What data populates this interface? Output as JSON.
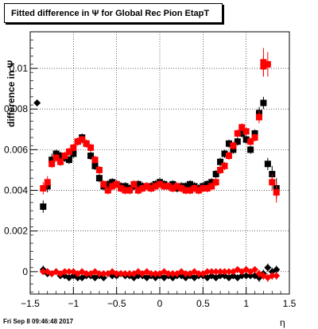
{
  "chart_data": {
    "type": "scatter",
    "title": "Fitted difference in  Ψ  for Global Rec Pion EtapT",
    "xlabel": "η",
    "ylabel": "difference in  Ψ",
    "xlim": [
      -1.5,
      1.5
    ],
    "ylim": [
      -0.0011,
      0.0118
    ],
    "x_ticks": [
      -1.5,
      -1,
      -0.5,
      0,
      0.5,
      1,
      1.5
    ],
    "x_tick_labels": [
      "−1.5",
      "−1",
      "−0.5",
      "0",
      "0.5",
      "1",
      "1.5"
    ],
    "y_ticks": [
      0,
      0.002,
      0.004,
      0.006,
      0.008,
      0.01
    ],
    "y_tick_labels": [
      "0",
      "0.002",
      "0.004",
      "0.006",
      "0.008",
      "0.01"
    ],
    "grid": true,
    "x": [
      -1.35,
      -1.3,
      -1.25,
      -1.2,
      -1.15,
      -1.1,
      -1.05,
      -1.0,
      -0.95,
      -0.9,
      -0.85,
      -0.8,
      -0.75,
      -0.7,
      -0.65,
      -0.6,
      -0.55,
      -0.5,
      -0.45,
      -0.4,
      -0.35,
      -0.3,
      -0.25,
      -0.2,
      -0.15,
      -0.1,
      -0.05,
      0.0,
      0.05,
      0.1,
      0.15,
      0.2,
      0.25,
      0.3,
      0.35,
      0.4,
      0.45,
      0.5,
      0.55,
      0.6,
      0.65,
      0.7,
      0.75,
      0.8,
      0.85,
      0.9,
      0.95,
      1.0,
      1.05,
      1.1,
      1.15,
      1.2,
      1.25,
      1.3,
      1.35
    ],
    "series": [
      {
        "color": "#000000",
        "marker": "square",
        "values": [
          0.0032,
          0.0042,
          0.0055,
          0.0058,
          0.0057,
          0.0056,
          0.0055,
          0.0058,
          0.0064,
          0.0066,
          0.0063,
          0.0057,
          0.0052,
          0.0046,
          0.0042,
          0.0043,
          0.0044,
          0.0043,
          0.0042,
          0.0042,
          0.0041,
          0.0042,
          0.0043,
          0.0042,
          0.0042,
          0.0042,
          0.0043,
          0.0044,
          0.0043,
          0.0042,
          0.0043,
          0.0041,
          0.0042,
          0.0042,
          0.0043,
          0.0042,
          0.0041,
          0.0042,
          0.0043,
          0.0044,
          0.0048,
          0.0054,
          0.0058,
          0.0063,
          0.006,
          0.0064,
          0.0068,
          0.0065,
          0.006,
          0.0068,
          0.0078,
          0.0083,
          0.0053,
          0.0048,
          0.0041
        ],
        "errors": [
          0.0003,
          0.0003,
          0.0003,
          0.0002,
          0.0002,
          0.0002,
          0.0002,
          0.0002,
          0.0002,
          0.0002,
          0.0002,
          0.0002,
          0.0002,
          0.0002,
          0.0002,
          0.0002,
          0.0002,
          0.0002,
          0.0002,
          0.0002,
          0.0002,
          0.0002,
          0.0002,
          0.0002,
          0.0002,
          0.0002,
          0.0002,
          0.0002,
          0.0002,
          0.0002,
          0.0002,
          0.0002,
          0.0002,
          0.0002,
          0.0002,
          0.0002,
          0.0002,
          0.0002,
          0.0002,
          0.0002,
          0.0002,
          0.0002,
          0.0002,
          0.0002,
          0.0002,
          0.0002,
          0.0002,
          0.0002,
          0.0002,
          0.0002,
          0.0003,
          0.0003,
          0.0003,
          0.0004,
          0.0005
        ]
      },
      {
        "color": "#ff0000",
        "marker": "square",
        "values": [
          0.0041,
          0.0044,
          0.0053,
          0.0056,
          0.0054,
          0.0057,
          0.0059,
          0.0061,
          0.0064,
          0.0065,
          0.0063,
          0.0061,
          0.0055,
          0.005,
          0.0043,
          0.004,
          0.0042,
          0.0043,
          0.0041,
          0.004,
          0.004,
          0.0043,
          0.004,
          0.0041,
          0.0042,
          0.0041,
          0.0042,
          0.0043,
          0.0042,
          0.0042,
          0.0041,
          0.0042,
          0.0041,
          0.004,
          0.004,
          0.0041,
          0.004,
          0.0041,
          0.0041,
          0.0042,
          0.0044,
          0.005,
          0.0052,
          0.0057,
          0.0062,
          0.0068,
          0.0071,
          0.0069,
          0.0064,
          0.0066,
          0.0076,
          0.0101,
          0.0102,
          0.0044,
          0.0039
        ],
        "errors": [
          0.0003,
          0.0003,
          0.0002,
          0.0002,
          0.0002,
          0.0002,
          0.0002,
          0.0002,
          0.0002,
          0.0002,
          0.0002,
          0.0002,
          0.0002,
          0.0002,
          0.0002,
          0.0002,
          0.0002,
          0.0002,
          0.0002,
          0.0002,
          0.0002,
          0.0002,
          0.0002,
          0.0002,
          0.0002,
          0.0002,
          0.0002,
          0.0002,
          0.0002,
          0.0002,
          0.0002,
          0.0002,
          0.0002,
          0.0002,
          0.0002,
          0.0002,
          0.0002,
          0.0002,
          0.0002,
          0.0002,
          0.0002,
          0.0002,
          0.0002,
          0.0002,
          0.0002,
          0.0002,
          0.0002,
          0.0002,
          0.0002,
          0.0002,
          0.0003,
          0.0005,
          0.0006,
          0.0004,
          0.0005
        ]
      },
      {
        "color": "#000000",
        "marker": "diamond",
        "values": [
          0.0001,
          -0.0001,
          -0.0001,
          0.0,
          -0.0002,
          -0.0002,
          -0.0003,
          -0.0002,
          -0.0003,
          -0.0003,
          -0.0002,
          -0.0002,
          -0.0003,
          -0.0002,
          -0.0003,
          -0.0001,
          -0.0002,
          -0.0002,
          -0.0001,
          -0.0002,
          -0.0002,
          -0.0003,
          -0.0002,
          -0.0002,
          -0.0003,
          -0.0002,
          -0.0003,
          -0.0002,
          -0.0003,
          -0.0002,
          -0.0003,
          -0.0002,
          -0.0002,
          -0.0003,
          -0.0002,
          -0.0003,
          -0.0002,
          -0.0002,
          -0.0003,
          -0.0002,
          -0.0003,
          -0.0002,
          -0.0002,
          -0.0003,
          -0.0002,
          -0.0003,
          -0.0002,
          -0.0002,
          -0.0002,
          -0.0002,
          -0.0003,
          -0.0001,
          0.0002,
          0.0,
          0.0001
        ],
        "errors": [
          0.0002,
          0.0001,
          0.0001,
          0.0001,
          0.0001,
          0.0001,
          0.0001,
          0.0001,
          0.0001,
          0.0001,
          0.0001,
          0.0001,
          0.0001,
          0.0001,
          0.0001,
          0.0001,
          0.0001,
          0.0001,
          0.0001,
          0.0001,
          0.0001,
          0.0001,
          0.0001,
          0.0001,
          0.0001,
          0.0001,
          0.0001,
          0.0001,
          0.0001,
          0.0001,
          0.0001,
          0.0001,
          0.0001,
          0.0001,
          0.0001,
          0.0001,
          0.0001,
          0.0001,
          0.0001,
          0.0001,
          0.0001,
          0.0001,
          0.0001,
          0.0001,
          0.0001,
          0.0001,
          0.0001,
          0.0001,
          0.0001,
          0.0001,
          0.0002,
          0.0002,
          0.0002,
          0.0002,
          0.0002
        ]
      },
      {
        "color": "#ff0000",
        "marker": "diamond",
        "values": [
          0.0,
          0.0,
          -0.0001,
          0.0,
          -0.0001,
          0.0,
          0.0,
          0.0,
          -0.0001,
          0.0,
          -0.0001,
          -0.0001,
          0.0,
          -0.0001,
          -0.0001,
          -0.0001,
          0.0,
          -0.0001,
          -0.0001,
          -0.0001,
          -0.0001,
          -0.0001,
          0.0,
          -0.0001,
          0.0,
          -0.0001,
          -0.0001,
          -0.0001,
          0.0,
          -0.0001,
          -0.0001,
          -0.0001,
          0.0,
          -0.0001,
          -0.0001,
          0.0,
          -0.0001,
          -0.0001,
          0.0,
          0.0,
          0.0,
          0.0,
          0.0,
          0.0,
          0.0,
          0.0001,
          0.0,
          0.0001,
          0.0,
          0.0001,
          -0.0001,
          -0.0002,
          -0.0003,
          -0.0002,
          -0.0002
        ],
        "errors": [
          0.0001,
          0.0001,
          0.0001,
          0.0001,
          0.0001,
          0.0001,
          0.0001,
          0.0001,
          0.0001,
          0.0001,
          0.0001,
          0.0001,
          0.0001,
          0.0001,
          0.0001,
          0.0001,
          0.0001,
          0.0001,
          0.0001,
          0.0001,
          0.0001,
          0.0001,
          0.0001,
          0.0001,
          0.0001,
          0.0001,
          0.0001,
          0.0001,
          0.0001,
          0.0001,
          0.0001,
          0.0001,
          0.0001,
          0.0001,
          0.0001,
          0.0001,
          0.0001,
          0.0001,
          0.0001,
          0.0001,
          0.0001,
          0.0001,
          0.0001,
          0.0001,
          0.0001,
          0.0001,
          0.0001,
          0.0001,
          0.0001,
          0.0001,
          0.0002,
          0.0002,
          0.0002,
          0.0002,
          0.0002
        ]
      }
    ],
    "extra_points": [
      {
        "x": -1.42,
        "y": 0.0083,
        "color": "#000000",
        "marker": "diamond"
      },
      {
        "x": 1.2,
        "y": 0.0103,
        "error": 0.0007,
        "color": "#ff0000",
        "marker": "square"
      }
    ]
  },
  "footer": {
    "timestamp": "Fri Sep  8 09:46:48 2017"
  }
}
